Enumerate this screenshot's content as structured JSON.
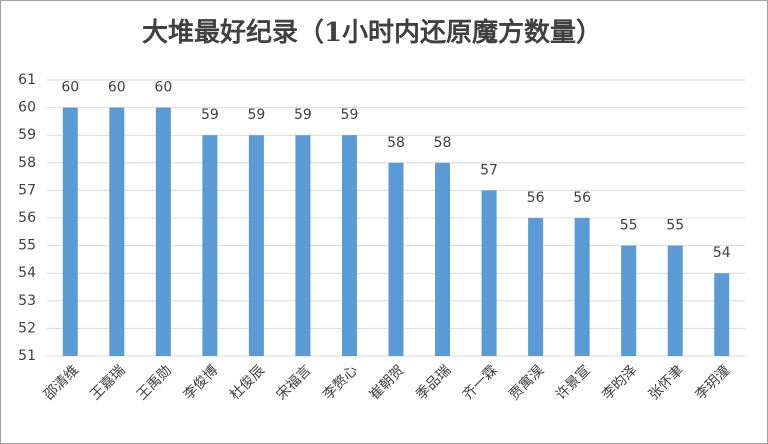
{
  "chart_data": {
    "type": "bar",
    "title": "大堆最好纪录（1小时内还原魔方数量）",
    "categories": [
      "邵清维",
      "王嘉瑞",
      "王禹勋",
      "李俊博",
      "杜俊辰",
      "宋福言",
      "李赘心",
      "崔朝贺",
      "季品瑞",
      "齐一霖",
      "贾寓淏",
      "许景宣",
      "李昀泽",
      "张怀聿",
      "李玥潼"
    ],
    "values": [
      60,
      60,
      60,
      59,
      59,
      59,
      59,
      58,
      58,
      57,
      56,
      56,
      55,
      55,
      54
    ],
    "color": "#5b9bd5",
    "ylim": [
      51,
      61
    ],
    "yticks": [
      51,
      52,
      53,
      54,
      55,
      56,
      57,
      58,
      59,
      60,
      61
    ],
    "grid": true
  }
}
